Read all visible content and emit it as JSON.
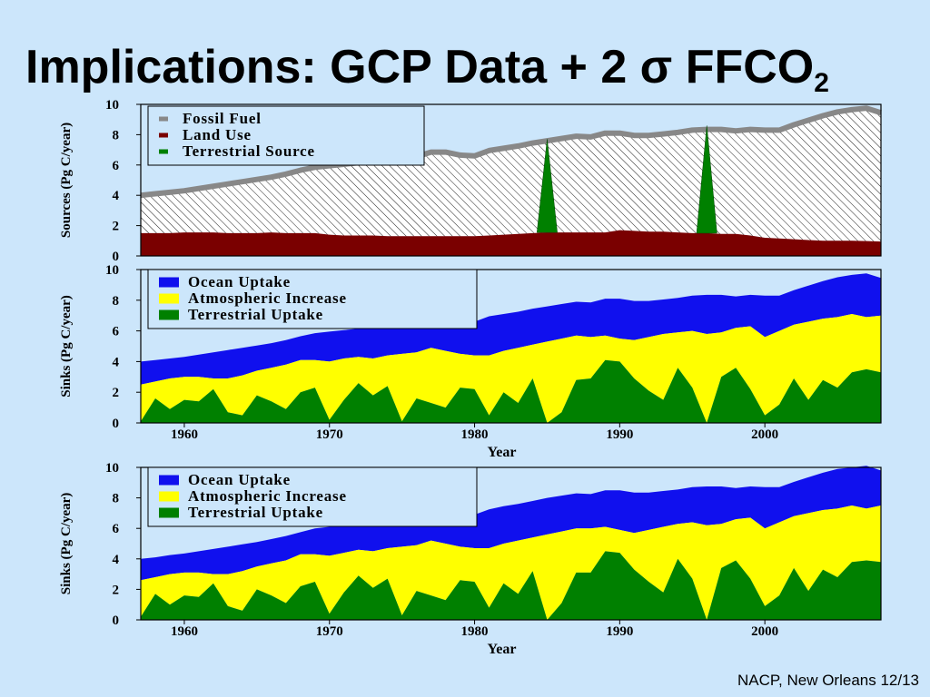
{
  "slide": {
    "title_main": "Implications: GCP Data + 2 σ FFCO",
    "title_sub": "2",
    "footer": "NACP, New Orleans 12/13"
  },
  "colors": {
    "background": "#cce6fb",
    "fossil_fuel": "#888888",
    "land_use": "#7a0000",
    "terrestrial": "#008000",
    "ocean": "#1010ee",
    "atmosphere": "#ffff00"
  },
  "chart_data": [
    {
      "type": "area",
      "id": "sources",
      "title": "",
      "xlabel": "",
      "ylabel": "Sources (Pg C/year)",
      "xlim": [
        1957,
        2008
      ],
      "ylim": [
        0,
        10
      ],
      "yticks": [
        0,
        2,
        4,
        6,
        8,
        10
      ],
      "xticks": [],
      "legend_position": "top-left",
      "legend": [
        "Fossil Fuel",
        "Land Use",
        "Terrestrial Source"
      ],
      "x": [
        1957,
        1958,
        1959,
        1960,
        1961,
        1962,
        1963,
        1964,
        1965,
        1966,
        1967,
        1968,
        1969,
        1970,
        1971,
        1972,
        1973,
        1974,
        1975,
        1976,
        1977,
        1978,
        1979,
        1980,
        1981,
        1982,
        1983,
        1984,
        1985,
        1986,
        1987,
        1988,
        1989,
        1990,
        1991,
        1992,
        1993,
        1994,
        1995,
        1996,
        1997,
        1998,
        1999,
        2000,
        2001,
        2002,
        2003,
        2004,
        2005,
        2006,
        2007,
        2008
      ],
      "series": [
        {
          "name": "Land Use",
          "values": [
            1.5,
            1.5,
            1.5,
            1.55,
            1.55,
            1.55,
            1.5,
            1.5,
            1.5,
            1.55,
            1.5,
            1.5,
            1.5,
            1.4,
            1.35,
            1.35,
            1.35,
            1.3,
            1.3,
            1.3,
            1.3,
            1.3,
            1.3,
            1.3,
            1.35,
            1.4,
            1.45,
            1.5,
            1.55,
            1.55,
            1.55,
            1.55,
            1.55,
            1.7,
            1.65,
            1.6,
            1.6,
            1.55,
            1.5,
            1.5,
            1.45,
            1.45,
            1.35,
            1.2,
            1.15,
            1.1,
            1.05,
            1.0,
            1.0,
            1.0,
            0.98,
            0.95
          ]
        },
        {
          "name": "Fossil Fuel",
          "values": [
            4.0,
            4.1,
            4.2,
            4.3,
            4.45,
            4.6,
            4.75,
            4.9,
            5.05,
            5.2,
            5.4,
            5.65,
            5.85,
            5.95,
            6.05,
            6.15,
            6.2,
            6.25,
            6.5,
            6.55,
            6.85,
            6.85,
            6.65,
            6.6,
            6.95,
            7.1,
            7.25,
            7.45,
            7.6,
            7.75,
            7.9,
            7.85,
            8.1,
            8.1,
            7.95,
            7.95,
            8.05,
            8.15,
            8.3,
            8.35,
            8.35,
            8.25,
            8.35,
            8.3,
            8.3,
            8.65,
            8.95,
            9.25,
            9.5,
            9.65,
            9.75,
            9.45
          ]
        }
      ],
      "terrestrial_source_spikes": [
        {
          "x": 1985,
          "value": 7.7
        },
        {
          "x": 1996,
          "value": 8.6
        }
      ]
    },
    {
      "type": "area",
      "id": "sinks-1",
      "title": "",
      "xlabel": "Year",
      "ylabel": "Sinks (Pg C/year)",
      "xlim": [
        1957,
        2008
      ],
      "ylim": [
        0,
        10
      ],
      "yticks": [
        0,
        2,
        4,
        6,
        8,
        10
      ],
      "xticks": [
        1960,
        1970,
        1980,
        1990,
        2000
      ],
      "legend_position": "top-left",
      "legend": [
        "Ocean Uptake",
        "Atmospheric Increase",
        "Terrestrial Uptake"
      ],
      "x": [
        1957,
        1958,
        1959,
        1960,
        1961,
        1962,
        1963,
        1964,
        1965,
        1966,
        1967,
        1968,
        1969,
        1970,
        1971,
        1972,
        1973,
        1974,
        1975,
        1976,
        1977,
        1978,
        1979,
        1980,
        1981,
        1982,
        1983,
        1984,
        1985,
        1986,
        1987,
        1988,
        1989,
        1990,
        1991,
        1992,
        1993,
        1994,
        1995,
        1996,
        1997,
        1998,
        1999,
        2000,
        2001,
        2002,
        2003,
        2004,
        2005,
        2006,
        2007,
        2008
      ],
      "series": [
        {
          "name": "Terrestrial Uptake",
          "values": [
            0.1,
            1.6,
            0.9,
            1.5,
            1.4,
            2.2,
            0.7,
            0.5,
            1.8,
            1.4,
            0.9,
            2.0,
            2.3,
            0.2,
            1.5,
            2.6,
            1.8,
            2.4,
            0.1,
            1.6,
            1.3,
            1.0,
            2.3,
            2.2,
            0.5,
            2.0,
            1.3,
            2.9,
            0.0,
            0.7,
            2.8,
            2.9,
            4.1,
            4.0,
            2.9,
            2.1,
            1.5,
            3.6,
            2.3,
            0.0,
            3.0,
            3.6,
            2.2,
            0.5,
            1.2,
            2.9,
            1.5,
            2.8,
            2.3,
            3.3,
            3.5,
            3.3
          ]
        },
        {
          "name": "Atmospheric Increase",
          "values": [
            2.5,
            2.7,
            2.9,
            3.0,
            3.0,
            2.9,
            2.9,
            3.1,
            3.4,
            3.6,
            3.8,
            4.1,
            4.1,
            4.0,
            4.2,
            4.3,
            4.2,
            4.4,
            4.5,
            4.6,
            4.9,
            4.7,
            4.5,
            4.4,
            4.4,
            4.7,
            4.9,
            5.1,
            5.3,
            5.5,
            5.7,
            5.6,
            5.7,
            5.5,
            5.4,
            5.6,
            5.8,
            5.9,
            6.0,
            5.8,
            5.9,
            6.2,
            6.3,
            5.6,
            6.0,
            6.4,
            6.6,
            6.8,
            6.9,
            7.1,
            6.9,
            7.0
          ]
        },
        {
          "name": "Ocean Uptake",
          "values": [
            4.0,
            4.1,
            4.2,
            4.3,
            4.45,
            4.6,
            4.75,
            4.9,
            5.05,
            5.2,
            5.4,
            5.65,
            5.85,
            5.95,
            6.05,
            6.15,
            6.2,
            6.25,
            6.5,
            6.55,
            6.85,
            6.85,
            6.65,
            6.6,
            6.95,
            7.1,
            7.25,
            7.45,
            7.6,
            7.75,
            7.9,
            7.85,
            8.1,
            8.1,
            7.95,
            7.95,
            8.05,
            8.15,
            8.3,
            8.35,
            8.35,
            8.25,
            8.35,
            8.3,
            8.3,
            8.65,
            8.95,
            9.25,
            9.5,
            9.65,
            9.75,
            9.45
          ]
        }
      ]
    },
    {
      "type": "area",
      "id": "sinks-2",
      "title": "",
      "xlabel": "Year",
      "ylabel": "Sinks (Pg C/year)",
      "xlim": [
        1957,
        2008
      ],
      "ylim": [
        0,
        10
      ],
      "yticks": [
        0,
        2,
        4,
        6,
        8,
        10
      ],
      "xticks": [
        1960,
        1970,
        1980,
        1990,
        2000
      ],
      "legend_position": "top-left",
      "legend": [
        "Ocean Uptake",
        "Atmospheric Increase",
        "Terrestrial Uptake"
      ],
      "x": [
        1957,
        1958,
        1959,
        1960,
        1961,
        1962,
        1963,
        1964,
        1965,
        1966,
        1967,
        1968,
        1969,
        1970,
        1971,
        1972,
        1973,
        1974,
        1975,
        1976,
        1977,
        1978,
        1979,
        1980,
        1981,
        1982,
        1983,
        1984,
        1985,
        1986,
        1987,
        1988,
        1989,
        1990,
        1991,
        1992,
        1993,
        1994,
        1995,
        1996,
        1997,
        1998,
        1999,
        2000,
        2001,
        2002,
        2003,
        2004,
        2005,
        2006,
        2007,
        2008
      ],
      "series": [
        {
          "name": "Terrestrial Uptake",
          "values": [
            0.2,
            1.7,
            1.0,
            1.6,
            1.5,
            2.4,
            0.9,
            0.6,
            2.0,
            1.6,
            1.1,
            2.2,
            2.5,
            0.4,
            1.8,
            2.9,
            2.1,
            2.7,
            0.3,
            1.9,
            1.6,
            1.3,
            2.6,
            2.5,
            0.8,
            2.4,
            1.7,
            3.2,
            0.0,
            1.1,
            3.1,
            3.1,
            4.5,
            4.4,
            3.3,
            2.5,
            1.8,
            4.0,
            2.7,
            0.0,
            3.4,
            3.9,
            2.7,
            0.9,
            1.6,
            3.4,
            1.9,
            3.3,
            2.8,
            3.8,
            3.9,
            3.8
          ]
        },
        {
          "name": "Atmospheric Increase",
          "values": [
            2.6,
            2.8,
            3.0,
            3.1,
            3.1,
            3.0,
            3.0,
            3.2,
            3.5,
            3.7,
            3.9,
            4.3,
            4.3,
            4.2,
            4.4,
            4.6,
            4.5,
            4.7,
            4.8,
            4.9,
            5.2,
            5.0,
            4.8,
            4.7,
            4.7,
            5.0,
            5.2,
            5.4,
            5.6,
            5.8,
            6.0,
            6.0,
            6.1,
            5.9,
            5.7,
            5.9,
            6.1,
            6.3,
            6.4,
            6.2,
            6.3,
            6.6,
            6.7,
            6.0,
            6.4,
            6.8,
            7.0,
            7.2,
            7.3,
            7.5,
            7.3,
            7.5
          ]
        },
        {
          "name": "Ocean Uptake",
          "values": [
            4.0,
            4.1,
            4.25,
            4.35,
            4.5,
            4.65,
            4.8,
            4.95,
            5.1,
            5.3,
            5.5,
            5.75,
            6.0,
            6.1,
            6.2,
            6.35,
            6.4,
            6.5,
            6.75,
            6.85,
            7.1,
            7.1,
            6.95,
            6.9,
            7.25,
            7.45,
            7.6,
            7.8,
            8.0,
            8.15,
            8.3,
            8.25,
            8.5,
            8.5,
            8.35,
            8.35,
            8.45,
            8.55,
            8.7,
            8.75,
            8.75,
            8.65,
            8.75,
            8.7,
            8.7,
            9.05,
            9.35,
            9.65,
            9.9,
            10.0,
            10.1,
            9.8
          ]
        }
      ]
    }
  ]
}
